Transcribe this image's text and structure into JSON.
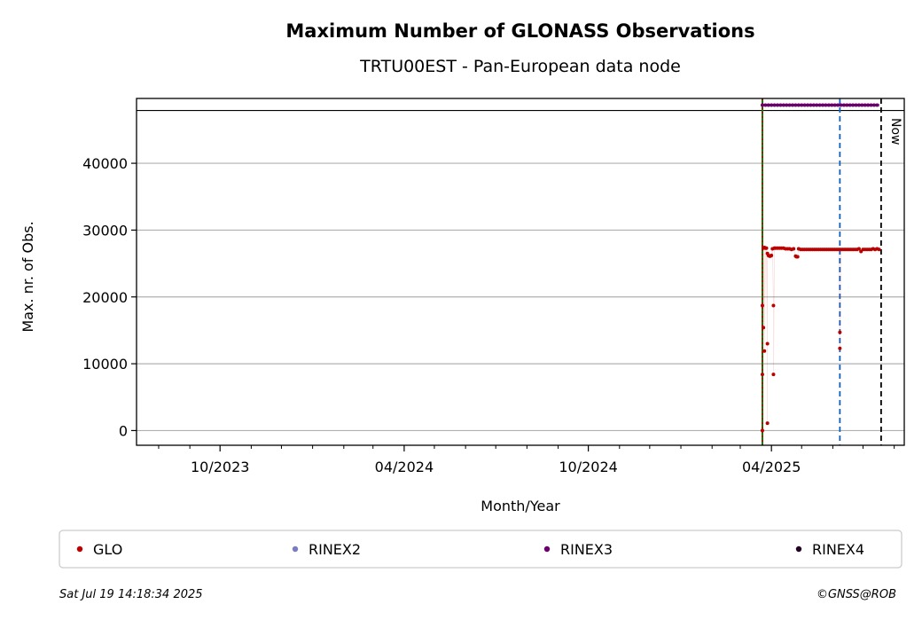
{
  "chart_data": {
    "type": "scatter",
    "title": "Maximum Number of GLONASS Observations",
    "subtitle": "TRTU00EST - Pan-European data node",
    "xlabel": "Month/Year",
    "ylabel": "Max. nr. of Obs.",
    "x_range": [
      "2023-07-10",
      "2025-08-11"
    ],
    "ylim": [
      -2200,
      49700
    ],
    "y_ticks": [
      0,
      10000,
      20000,
      30000,
      40000
    ],
    "x_tick_labels": [
      {
        "date": "2023-10-01",
        "label": "10/2023"
      },
      {
        "date": "2024-04-01",
        "label": "04/2024"
      },
      {
        "date": "2024-10-01",
        "label": "10/2024"
      },
      {
        "date": "2025-04-01",
        "label": "04/2025"
      }
    ],
    "minor_tick_months": [
      "2023-08-01",
      "2023-09-01",
      "2023-11-01",
      "2023-12-01",
      "2024-01-01",
      "2024-02-01",
      "2024-03-01",
      "2024-05-01",
      "2024-06-01",
      "2024-07-01",
      "2024-08-01",
      "2024-09-01",
      "2024-11-01",
      "2024-12-01",
      "2025-01-01",
      "2025-02-01",
      "2025-03-01",
      "2025-05-01",
      "2025-06-01",
      "2025-07-01",
      "2025-08-01"
    ],
    "grid": "horizontal",
    "ref_hline": 47900,
    "vlines": [
      {
        "date": "2025-03-23",
        "color": "#008000",
        "style": "solid"
      },
      {
        "date": "2025-03-23",
        "color": "#cc0000",
        "style": "dotted"
      },
      {
        "date": "2025-06-08",
        "color": "#1060c0",
        "style": "dashed"
      },
      {
        "date": "2025-07-19",
        "color": "#000000",
        "style": "dashed",
        "label": "Now"
      }
    ],
    "rinex3_band": {
      "start": "2025-03-23",
      "end": "2025-07-17",
      "value": 48700,
      "color": "#6a006a"
    },
    "series": [
      {
        "name": "GLO",
        "color": "#bb0000",
        "points": [
          [
            "2025-03-23",
            0
          ],
          [
            "2025-03-23",
            8400
          ],
          [
            "2025-03-23",
            18700
          ],
          [
            "2025-03-24",
            27300
          ],
          [
            "2025-03-24",
            15400
          ],
          [
            "2025-03-25",
            27400
          ],
          [
            "2025-03-25",
            11900
          ],
          [
            "2025-03-26",
            27300
          ],
          [
            "2025-03-27",
            27300
          ],
          [
            "2025-03-28",
            13000
          ],
          [
            "2025-03-28",
            1100
          ],
          [
            "2025-03-28",
            26500
          ],
          [
            "2025-03-29",
            26200
          ],
          [
            "2025-03-30",
            26100
          ],
          [
            "2025-03-31",
            26100
          ],
          [
            "2025-04-01",
            26200
          ],
          [
            "2025-04-02",
            27200
          ],
          [
            "2025-04-03",
            18700
          ],
          [
            "2025-04-03",
            8400
          ],
          [
            "2025-04-04",
            27300
          ],
          [
            "2025-04-05",
            27300
          ],
          [
            "2025-04-07",
            27300
          ],
          [
            "2025-04-09",
            27300
          ],
          [
            "2025-04-11",
            27300
          ],
          [
            "2025-04-13",
            27300
          ],
          [
            "2025-04-15",
            27200
          ],
          [
            "2025-04-17",
            27200
          ],
          [
            "2025-04-19",
            27200
          ],
          [
            "2025-04-21",
            27100
          ],
          [
            "2025-04-23",
            27200
          ],
          [
            "2025-04-25",
            26100
          ],
          [
            "2025-04-26",
            26000
          ],
          [
            "2025-04-27",
            26000
          ],
          [
            "2025-04-28",
            27200
          ],
          [
            "2025-04-30",
            27100
          ],
          [
            "2025-05-02",
            27100
          ],
          [
            "2025-05-04",
            27100
          ],
          [
            "2025-05-06",
            27100
          ],
          [
            "2025-05-08",
            27100
          ],
          [
            "2025-05-10",
            27100
          ],
          [
            "2025-05-12",
            27100
          ],
          [
            "2025-05-14",
            27100
          ],
          [
            "2025-05-16",
            27100
          ],
          [
            "2025-05-18",
            27100
          ],
          [
            "2025-05-20",
            27100
          ],
          [
            "2025-05-22",
            27100
          ],
          [
            "2025-05-24",
            27100
          ],
          [
            "2025-05-26",
            27100
          ],
          [
            "2025-05-28",
            27100
          ],
          [
            "2025-05-30",
            27100
          ],
          [
            "2025-06-01",
            27100
          ],
          [
            "2025-06-03",
            27100
          ],
          [
            "2025-06-05",
            27100
          ],
          [
            "2025-06-07",
            27100
          ],
          [
            "2025-06-08",
            14700
          ],
          [
            "2025-06-08",
            12300
          ],
          [
            "2025-06-09",
            27100
          ],
          [
            "2025-06-11",
            27100
          ],
          [
            "2025-06-13",
            27100
          ],
          [
            "2025-06-15",
            27100
          ],
          [
            "2025-06-17",
            27100
          ],
          [
            "2025-06-19",
            27100
          ],
          [
            "2025-06-21",
            27100
          ],
          [
            "2025-06-23",
            27100
          ],
          [
            "2025-06-25",
            27100
          ],
          [
            "2025-06-27",
            27200
          ],
          [
            "2025-06-29",
            26800
          ],
          [
            "2025-07-01",
            27100
          ],
          [
            "2025-07-03",
            27100
          ],
          [
            "2025-07-05",
            27100
          ],
          [
            "2025-07-07",
            27100
          ],
          [
            "2025-07-09",
            27100
          ],
          [
            "2025-07-11",
            27200
          ],
          [
            "2025-07-13",
            27100
          ],
          [
            "2025-07-15",
            27200
          ],
          [
            "2025-07-17",
            27100
          ]
        ]
      }
    ],
    "legend": {
      "placement": "bottom",
      "entries": [
        {
          "label": "GLO",
          "color": "#bb0000"
        },
        {
          "label": "RINEX2",
          "color": "#7b7bbf"
        },
        {
          "label": "RINEX3",
          "color": "#6a006a"
        },
        {
          "label": "RINEX4",
          "color": "#220022"
        }
      ]
    }
  },
  "footer": {
    "timestamp": "Sat Jul 19 14:18:34 2025",
    "credit": "©GNSS@ROB"
  }
}
